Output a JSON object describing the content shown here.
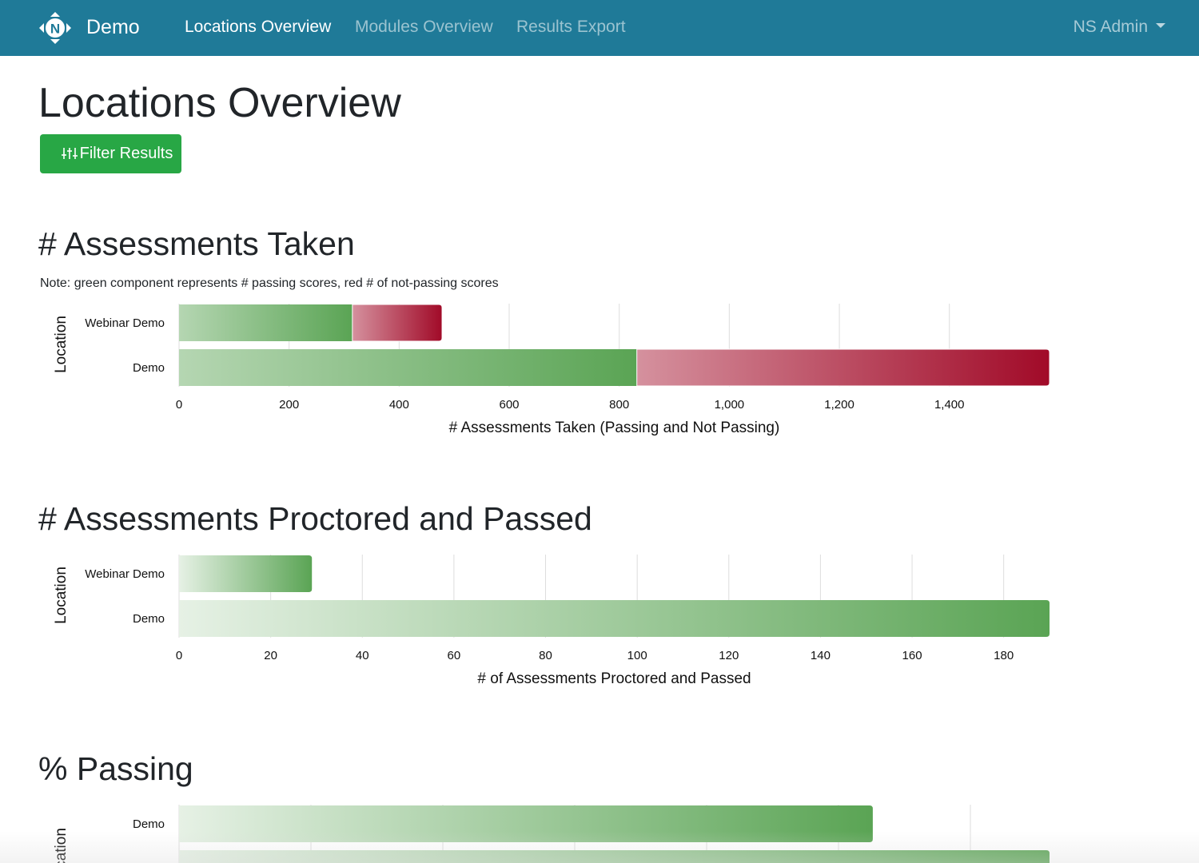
{
  "nav": {
    "brand": "Demo",
    "logo_letter": "N",
    "links": [
      {
        "label": "Locations Overview",
        "active": true
      },
      {
        "label": "Modules Overview",
        "active": false
      },
      {
        "label": "Results Export",
        "active": false
      }
    ],
    "user": "NS Admin",
    "bar_color": "#1f7a98"
  },
  "page": {
    "title": "Locations Overview",
    "filter_button": "Filter Results"
  },
  "sections": {
    "taken": {
      "title": "# Assessments Taken",
      "note": "Note: green component represents # passing scores, red # of not-passing scores"
    },
    "proctored": {
      "title": "# Assessments Proctored and Passed"
    },
    "passing": {
      "title": "% Passing"
    }
  },
  "chart_data": [
    {
      "id": "taken",
      "type": "bar",
      "orientation": "horizontal",
      "stacked": true,
      "categories": [
        "Webinar Demo",
        "Demo"
      ],
      "series": [
        {
          "name": "passing",
          "color": "#5aa454",
          "values": [
            315,
            832
          ]
        },
        {
          "name": "not passing",
          "color": "#a10a28",
          "values": [
            163,
            750
          ]
        }
      ],
      "xlabel": "# Assessments Taken (Passing and Not Passing)",
      "ylabel": "Location",
      "xlim": [
        0,
        1582
      ],
      "xticks": [
        0,
        200,
        400,
        600,
        800,
        1000,
        1200,
        1400
      ],
      "xtick_labels": [
        "0",
        "200",
        "400",
        "600",
        "800",
        "1,000",
        "1,200",
        "1,400"
      ],
      "grid": true
    },
    {
      "id": "proctored",
      "type": "bar",
      "orientation": "horizontal",
      "categories": [
        "Webinar Demo",
        "Demo"
      ],
      "series": [
        {
          "color": "#5aa454",
          "values": [
            29,
            190
          ]
        }
      ],
      "xlabel": "# of Assessments Proctored and Passed",
      "ylabel": "Location",
      "xlim": [
        0,
        190
      ],
      "xticks": [
        0,
        20,
        40,
        60,
        80,
        100,
        120,
        140,
        160,
        180
      ],
      "xtick_labels": [
        "0",
        "20",
        "40",
        "60",
        "80",
        "100",
        "120",
        "140",
        "160",
        "180"
      ],
      "grid": true
    },
    {
      "id": "passing",
      "type": "bar",
      "orientation": "horizontal",
      "categories": [
        "Demo",
        ""
      ],
      "series": [
        {
          "color": "#5aa454",
          "values": [
            52.6,
            66
          ]
        }
      ],
      "ylabel": "Location",
      "xlim": [
        0,
        66
      ],
      "gridlines": [
        0,
        10,
        20,
        30,
        40,
        50,
        60
      ],
      "grid": true
    }
  ]
}
